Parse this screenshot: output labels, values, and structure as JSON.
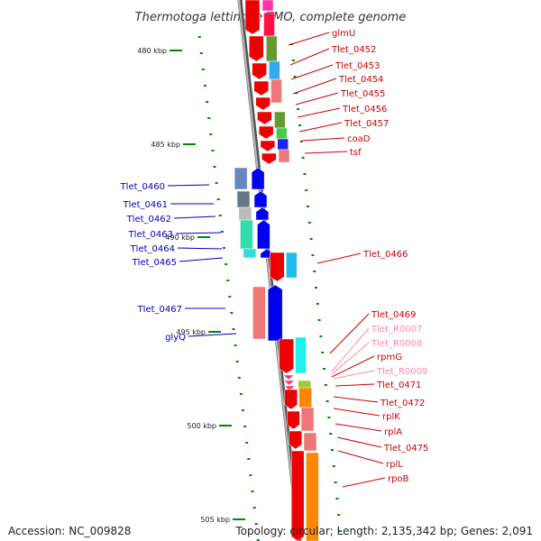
{
  "title": "Thermotoga lettingae TMO, complete genome",
  "footer": {
    "accession": "Accession: NC_009828",
    "summary": "Topology: circular; Length: 2,135,342 bp; Genes: 2,091"
  },
  "axis_ticks": [
    "480 kbp",
    "485 kbp",
    "490 kbp",
    "495 kbp",
    "500 kbp",
    "505 kbp"
  ],
  "colors": {
    "backbone": "#888888",
    "forward_label": "#cc0000",
    "reverse_label": "#0000bb",
    "rna_label": "#ff88aa",
    "tick": "#008800"
  },
  "genes_right": [
    {
      "label": "glmU",
      "kind": "cds"
    },
    {
      "label": "Tlet_0452",
      "kind": "cds"
    },
    {
      "label": "Tlet_0453",
      "kind": "cds"
    },
    {
      "label": "Tlet_0454",
      "kind": "cds"
    },
    {
      "label": "Tlet_0455",
      "kind": "cds"
    },
    {
      "label": "Tlet_0456",
      "kind": "cds"
    },
    {
      "label": "Tlet_0457",
      "kind": "cds"
    },
    {
      "label": "coaD",
      "kind": "cds"
    },
    {
      "label": "tsf",
      "kind": "cds"
    },
    {
      "label": "Tlet_0466",
      "kind": "cds"
    },
    {
      "label": "Tlet_0469",
      "kind": "cds"
    },
    {
      "label": "Tlet_R0007",
      "kind": "rna"
    },
    {
      "label": "Tlet_R0008",
      "kind": "rna"
    },
    {
      "label": "rpmG",
      "kind": "cds"
    },
    {
      "label": "Tlet_R0009",
      "kind": "rna"
    },
    {
      "label": "Tlet_0471",
      "kind": "cds"
    },
    {
      "label": "Tlet_0472",
      "kind": "cds"
    },
    {
      "label": "rplK",
      "kind": "cds"
    },
    {
      "label": "rplA",
      "kind": "cds"
    },
    {
      "label": "Tlet_0475",
      "kind": "cds"
    },
    {
      "label": "rplL",
      "kind": "cds"
    },
    {
      "label": "rpoB",
      "kind": "cds"
    }
  ],
  "genes_left": [
    {
      "label": "Tlet_0460"
    },
    {
      "label": "Tlet_0461"
    },
    {
      "label": "Tlet_0462"
    },
    {
      "label": "Tlet_0463"
    },
    {
      "label": "Tlet_0464"
    },
    {
      "label": "Tlet_0465"
    },
    {
      "label": "Tlet_0467"
    },
    {
      "label": "glyQ"
    }
  ]
}
